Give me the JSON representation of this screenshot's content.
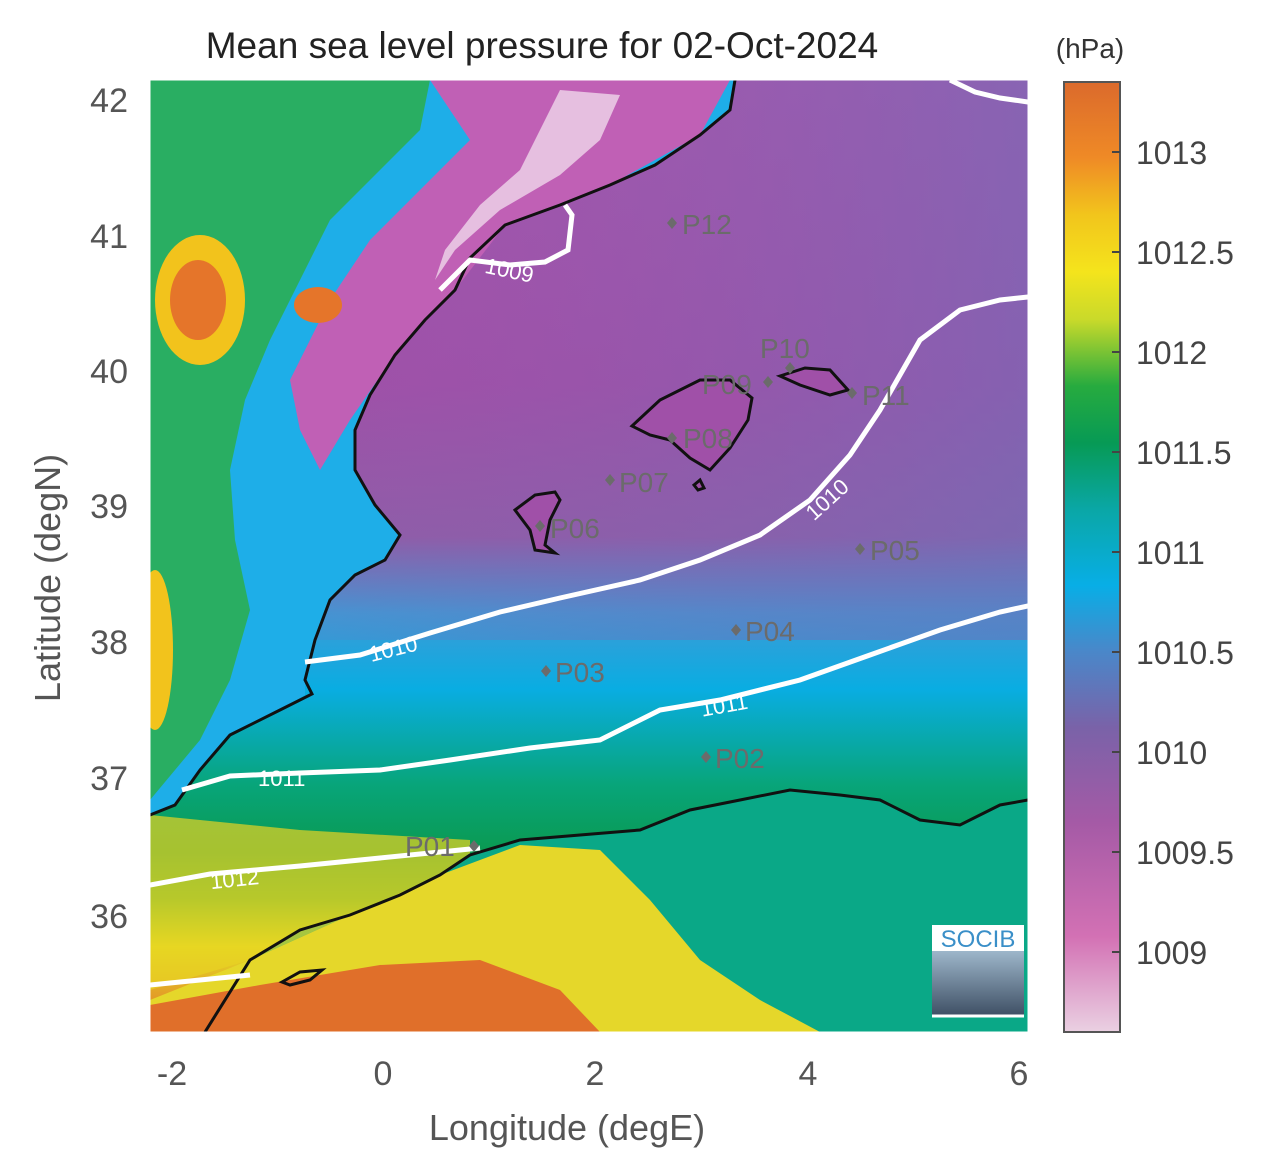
{
  "title": "Mean sea level pressure for 02-Oct-2024",
  "xlabel": "Longitude (degE)",
  "ylabel": "Latitude (degN)",
  "x_ticks": [
    "-2",
    "0",
    "2",
    "4",
    "6"
  ],
  "y_ticks": [
    "42",
    "41",
    "40",
    "39",
    "38",
    "37",
    "36"
  ],
  "colorbar": {
    "unit": "(hPa)",
    "ticks": [
      "1013",
      "1012.5",
      "1012",
      "1011.5",
      "1011",
      "1010.5",
      "1010",
      "1009.5",
      "1009"
    ]
  },
  "contour_labels": [
    "1009",
    "1010",
    "1010",
    "1011",
    "1011",
    "1012"
  ],
  "stations": [
    "P01",
    "P02",
    "P03",
    "P04",
    "P05",
    "P06",
    "P07",
    "P08",
    "P09",
    "P10",
    "P11",
    "P12"
  ],
  "logo": "SOCIB",
  "colors": {
    "low": "#e9c9dc",
    "mid_low": "#8f4fa0",
    "mid": "#0aa0dc",
    "mid_high": "#0c9a50",
    "high_mid": "#f0e020",
    "high": "#dd6a2a",
    "contour": "#ffffff",
    "coast": "#111111"
  }
}
